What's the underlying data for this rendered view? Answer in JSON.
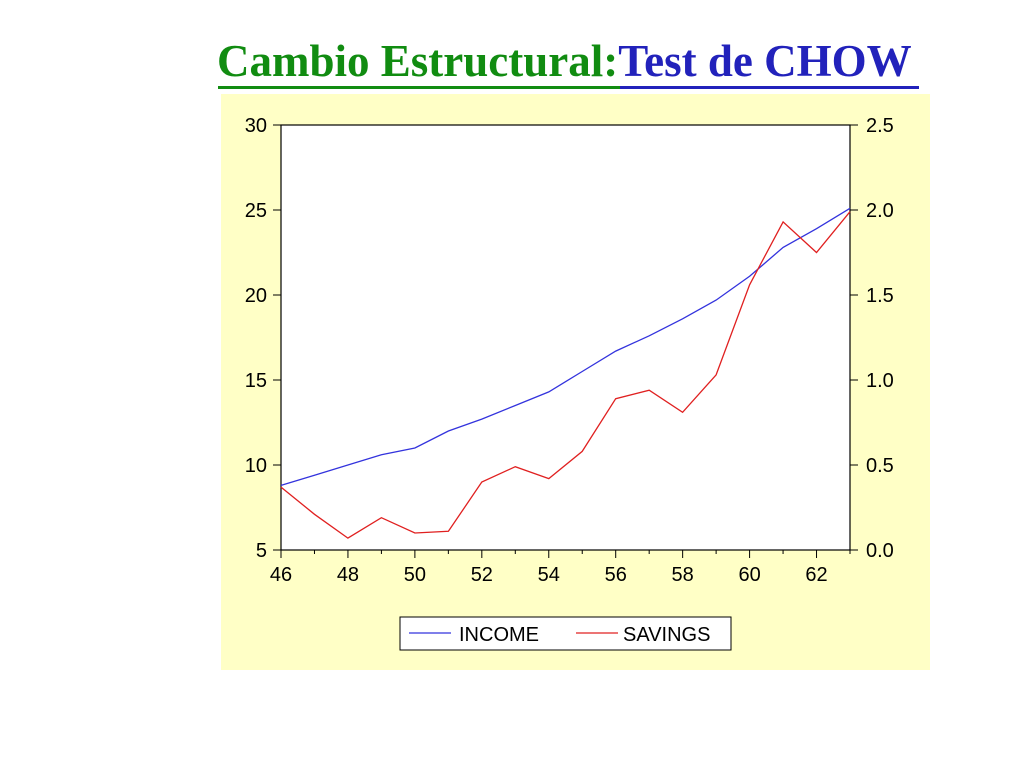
{
  "slide": {
    "title_part1": "Cambio Estructural:",
    "title_part2": "Test de CHOW"
  },
  "colors": {
    "title_green": "#118c11",
    "title_blue": "#2222bb",
    "panel_background": "#ffffc6",
    "income_line": "#3333dd",
    "savings_line": "#e02020"
  },
  "chart_data": {
    "type": "line",
    "title": "",
    "xlabel": "",
    "ylabel_left": "",
    "ylabel_right": "",
    "x": [
      46,
      47,
      48,
      49,
      50,
      51,
      52,
      53,
      54,
      55,
      56,
      57,
      58,
      59,
      60,
      61,
      62,
      63
    ],
    "x_ticks": [
      46,
      48,
      50,
      52,
      54,
      56,
      58,
      60,
      62
    ],
    "xlim": [
      46,
      63
    ],
    "y_left_lim": [
      5,
      30
    ],
    "y_left_ticks": [
      "5",
      "10",
      "15",
      "20",
      "25",
      "30"
    ],
    "y_right_lim": [
      0.0,
      2.5
    ],
    "y_right_ticks": [
      "0.0",
      "0.5",
      "1.0",
      "1.5",
      "2.0",
      "2.5"
    ],
    "grid": false,
    "legend_position": "bottom",
    "series": [
      {
        "name": "INCOME",
        "axis": "left",
        "color": "#3333dd",
        "values": [
          8.8,
          9.4,
          10.0,
          10.6,
          11.0,
          12.0,
          12.7,
          13.5,
          14.3,
          15.5,
          16.7,
          17.6,
          18.6,
          19.7,
          21.1,
          22.8,
          23.9,
          25.1
        ]
      },
      {
        "name": "SAVINGS",
        "axis": "right",
        "color": "#e02020",
        "values": [
          0.37,
          0.21,
          0.07,
          0.19,
          0.1,
          0.11,
          0.4,
          0.49,
          0.42,
          0.58,
          0.89,
          0.94,
          0.81,
          1.03,
          1.56,
          1.93,
          1.75,
          1.99
        ]
      }
    ]
  }
}
